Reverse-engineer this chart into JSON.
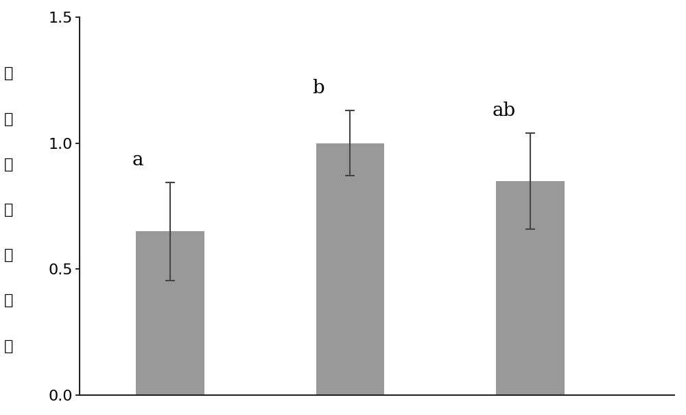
{
  "values": [
    0.65,
    1.0,
    0.85
  ],
  "errors": [
    0.195,
    0.13,
    0.19
  ],
  "bar_color": "#999999",
  "bar_width": 0.38,
  "bar_positions": [
    1,
    2,
    3
  ],
  "annotations": [
    "a",
    "b",
    "ab"
  ],
  "ylabel": "基因相对表达量",
  "ylim": [
    0,
    1.5
  ],
  "yticks": [
    0,
    0.5,
    1.0,
    1.5
  ],
  "background_color": "#ffffff",
  "bar_edge_color": "none",
  "annotation_fontsize": 20,
  "ylabel_fontsize": 16,
  "tick_fontsize": 16,
  "xlim": [
    0.5,
    3.8
  ],
  "error_color": "#444444",
  "error_capsize": 5,
  "error_linewidth": 1.5
}
